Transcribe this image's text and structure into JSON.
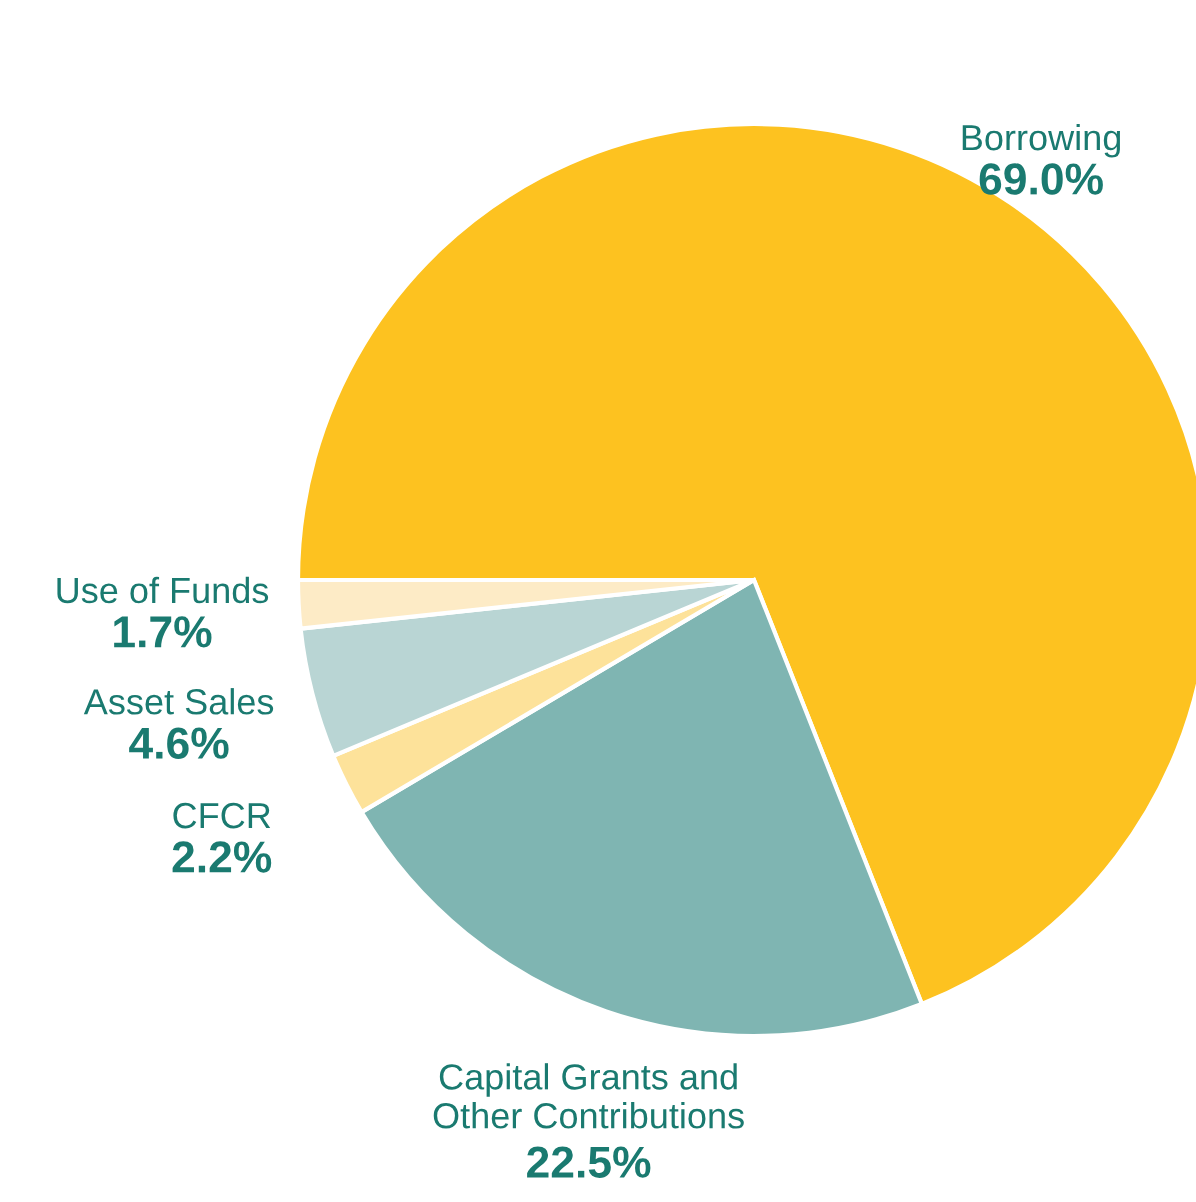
{
  "chart_data": {
    "type": "pie",
    "categories": [
      "Borrowing",
      "Capital Grants and\nOther Contributions",
      "CFCR",
      "Asset Sales",
      "Use of Funds"
    ],
    "values": [
      69.0,
      22.5,
      2.2,
      4.6,
      1.7
    ],
    "value_labels": [
      "69.0%",
      "22.5%",
      "2.2%",
      "4.6%",
      "1.7%"
    ],
    "colors": [
      "#fdc220",
      "#7fb5b2",
      "#fde29a",
      "#b9d5d4",
      "#fdebc6"
    ]
  }
}
